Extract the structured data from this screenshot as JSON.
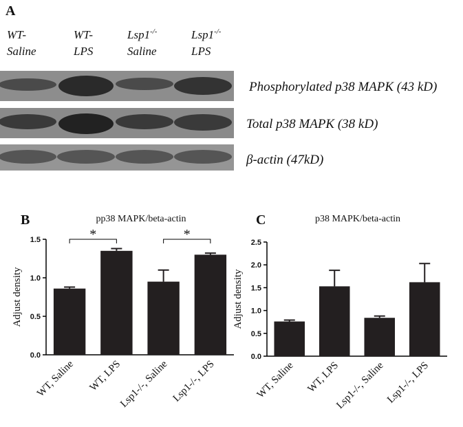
{
  "panel_a": {
    "label": "A",
    "lanes": [
      {
        "name": "WT-",
        "condition": "Saline"
      },
      {
        "name": "WT-",
        "condition": "LPS"
      },
      {
        "name": "Lsp1",
        "sup": "-/-",
        "condition": "Saline"
      },
      {
        "name": "Lsp1",
        "sup": "-/-",
        "condition": "LPS"
      }
    ],
    "bands": [
      "Phosphorylated p38 MAPK (43 kD)",
      "Total p38 MAPK (38 kD)",
      "β-actin (47kD)"
    ]
  },
  "chart_data": [
    {
      "type": "bar",
      "panel": "B",
      "title": "pp38 MAPK/beta-actin",
      "y_label": "Adjust density",
      "categories": [
        "WT, Saline",
        "WT, LPS",
        "Lsp1-/-, Saline",
        "Lsp1-/-, LPS"
      ],
      "values": [
        0.86,
        1.35,
        0.95,
        1.3
      ],
      "errors": [
        0.02,
        0.03,
        0.15,
        0.02
      ],
      "color": "#231f20",
      "ylim": [
        0,
        1.5
      ],
      "yticks": [
        {
          "value": 0,
          "label": "0.0"
        },
        0.5,
        {
          "value": 1,
          "label": "1.0"
        },
        1.5
      ],
      "significance": [
        "*",
        "*"
      ]
    },
    {
      "type": "bar",
      "panel": "C",
      "title": "p38 MAPK/beta-actin",
      "y_label": "Adjust density",
      "categories": [
        "WT, Saline",
        "WT, LPS",
        "Lsp1-/-, Saline",
        "Lsp1-/-, LPS"
      ],
      "values": [
        0.76,
        1.53,
        0.84,
        1.62
      ],
      "errors": [
        0.03,
        0.35,
        0.04,
        0.41
      ],
      "color": "#231f20",
      "ylim": [
        0,
        2.5
      ],
      "yticks": [
        {
          "value": 0,
          "label": "0.0"
        },
        0.5,
        {
          "value": 1,
          "label": "1.0"
        },
        1.5,
        {
          "value": 2,
          "label": "2.0"
        },
        2.5
      ]
    }
  ]
}
